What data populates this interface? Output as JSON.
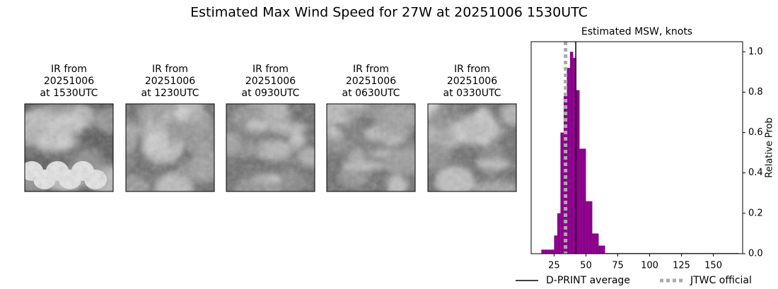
{
  "title": "Estimated Max Wind Speed for 27W at 20251006 1530UTC",
  "panels": [
    {
      "lines": [
        "IR from",
        "20251006",
        "at 1530UTC"
      ]
    },
    {
      "lines": [
        "IR from",
        "20251006",
        "at 1230UTC"
      ]
    },
    {
      "lines": [
        "IR from",
        "20251006",
        "at 0930UTC"
      ]
    },
    {
      "lines": [
        "IR from",
        "20251006",
        "at 0630UTC"
      ]
    },
    {
      "lines": [
        "IR from",
        "20251006",
        "at 0330UTC"
      ]
    }
  ],
  "chart_data": {
    "type": "histogram",
    "title": "Estimated MSW, knots",
    "y_label": "Relative Prob",
    "bins": [
      15,
      17.5,
      20,
      22.5,
      25,
      27.5,
      30,
      32.5,
      35,
      37.5,
      40,
      42.5,
      45,
      47.5,
      50,
      52.5,
      55,
      57.5,
      60,
      62.5,
      65,
      170
    ],
    "values": [
      0.02,
      0.02,
      0.02,
      0.02,
      0.09,
      0.2,
      0.6,
      0.78,
      0.92,
      1.0,
      0.97,
      0.81,
      0.52,
      0.52,
      0.26,
      0.26,
      0.1,
      0.1,
      0.04,
      0.04,
      0.003
    ],
    "color": "#8b008b",
    "xlim": [
      7,
      173
    ],
    "xticks": [
      25,
      50,
      75,
      100,
      125,
      150
    ],
    "ylim": [
      0,
      1.05
    ],
    "yticks": [
      {
        "value": 0,
        "label": "0.0"
      },
      0.2,
      0.4,
      0.6,
      0.8,
      {
        "value": 1,
        "label": "1.0"
      }
    ],
    "y_axis_side": "right",
    "reference_lines": [
      {
        "name": "D-PRINT average",
        "value": 42,
        "color": "#000000",
        "style": "solid"
      },
      {
        "name": "JTWC official",
        "value": 34,
        "color": "#aaaaaa",
        "style": "dotted"
      }
    ]
  }
}
